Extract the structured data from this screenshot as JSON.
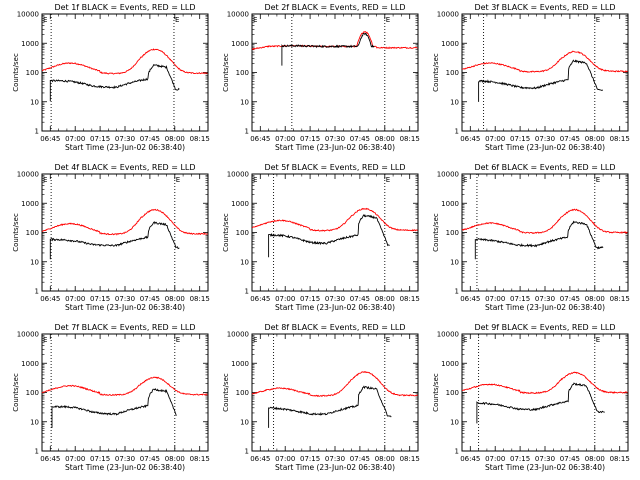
{
  "figure": {
    "axis": {
      "x_tick_labels": [
        "06:45",
        "07:00",
        "07:15",
        "07:30",
        "07:45",
        "08:00",
        "08:15"
      ],
      "x_tick_minutes": [
        0,
        15,
        30,
        45,
        60,
        75,
        90
      ],
      "x_range_minutes": [
        -5,
        95
      ],
      "x_label": "Start Time (23-Jun-02 06:38:40)",
      "y_label": "Counts/sec",
      "y_scale": "log",
      "y_tick_labels": [
        "1",
        "10",
        "100",
        "1000",
        "10000"
      ],
      "y_tick_values": [
        1,
        10,
        100,
        1000,
        10000
      ],
      "y_range": [
        1,
        10000
      ],
      "legend_marker": "E",
      "colors": {
        "events": "#000000",
        "lld": "#ff0000",
        "axes": "#000000"
      }
    },
    "panels": [
      {
        "title": "Det 1f BLACK = Events, RED = LLD",
        "vlines": [
          0.5,
          74.5
        ],
        "lld_mode": "standard",
        "lld_base": 95,
        "lld_bump": 210,
        "lld_peak": 620,
        "events_start": 0,
        "events_base": 48,
        "events_bump": 55,
        "events_peak": 180,
        "events_end": 78
      },
      {
        "title": "Det 2f BLACK = Events, RED = LLD",
        "vlines": [
          19,
          75
        ],
        "lld_mode": "flat",
        "lld_base": 780,
        "lld_bump": 820,
        "lld_peak": 2500,
        "events_start": 13,
        "events_base": 780,
        "events_bump": 820,
        "events_peak": 2100,
        "events_end": 69
      },
      {
        "title": "Det 3f BLACK = Events, RED = LLD",
        "vlines": [
          8,
          75
        ],
        "lld_mode": "standard",
        "lld_base": 110,
        "lld_bump": 210,
        "lld_peak": 520,
        "events_start": 5,
        "events_base": 45,
        "events_bump": 50,
        "events_peak": 250,
        "events_end": 80
      },
      {
        "title": "Det 4f BLACK = Events, RED = LLD",
        "vlines": [
          0.5,
          75
        ],
        "lld_mode": "standard",
        "lld_base": 90,
        "lld_bump": 200,
        "lld_peak": 600,
        "events_start": 0,
        "events_base": 55,
        "events_bump": 55,
        "events_peak": 220,
        "events_end": 78
      },
      {
        "title": "Det 5f BLACK = Events, RED = LLD",
        "vlines": [
          8,
          75
        ],
        "lld_mode": "standard",
        "lld_base": 120,
        "lld_bump": 260,
        "lld_peak": 650,
        "events_start": 5,
        "events_base": 65,
        "events_bump": 95,
        "events_peak": 380,
        "events_end": 78
      },
      {
        "title": "Det 6f BLACK = Events, RED = LLD",
        "vlines": [
          4,
          75
        ],
        "lld_mode": "standard",
        "lld_base": 100,
        "lld_bump": 210,
        "lld_peak": 600,
        "events_start": 3,
        "events_base": 55,
        "events_bump": 50,
        "events_peak": 230,
        "events_end": 80
      },
      {
        "title": "Det 7f BLACK = Events, RED = LLD",
        "vlines": [
          0.5,
          75
        ],
        "lld_mode": "standard",
        "lld_base": 85,
        "lld_bump": 170,
        "lld_peak": 330,
        "events_start": 1,
        "events_base": 28,
        "events_bump": 38,
        "events_peak": 130,
        "events_end": 76
      },
      {
        "title": "Det 8f BLACK = Events, RED = LLD",
        "vlines": [
          8,
          75
        ],
        "lld_mode": "standard",
        "lld_base": 80,
        "lld_bump": 140,
        "lld_peak": 500,
        "events_start": 5,
        "events_base": 28,
        "events_bump": 25,
        "events_peak": 155,
        "events_end": 79
      },
      {
        "title": "Det 9f BLACK = Events, RED = LLD",
        "vlines": [
          5,
          75
        ],
        "lld_mode": "standard",
        "lld_base": 100,
        "lld_bump": 190,
        "lld_peak": 480,
        "events_start": 4,
        "events_base": 40,
        "events_bump": 40,
        "events_peak": 200,
        "events_end": 81
      }
    ]
  },
  "chart_data": {
    "type": "line",
    "layout": "3x3 grid",
    "x_axis": {
      "label": "Start Time (23-Jun-02 06:38:40)",
      "ticks": [
        "06:45",
        "07:00",
        "07:15",
        "07:30",
        "07:45",
        "08:00",
        "08:15"
      ]
    },
    "y_axis": {
      "label": "Counts/sec",
      "scale": "log",
      "ylim": [
        1,
        10000
      ]
    },
    "series_names": [
      "Events (black)",
      "LLD (red)"
    ],
    "panels": [
      {
        "title": "Det 1f BLACK = Events, RED = LLD",
        "events": {
          "x": [
            "06:45",
            "07:00",
            "07:15",
            "07:30",
            "07:45",
            "07:51",
            "07:58"
          ],
          "y": [
            48,
            50,
            35,
            38,
            70,
            180,
            40
          ]
        },
        "lld": {
          "x": [
            "06:40",
            "07:00",
            "07:15",
            "07:30",
            "07:45",
            "07:51",
            "08:00",
            "08:15"
          ],
          "y": [
            95,
            210,
            140,
            150,
            300,
            620,
            250,
            90
          ]
        }
      },
      {
        "title": "Det 2f BLACK = Events, RED = LLD",
        "events": {
          "x": [
            "06:58",
            "07:15",
            "07:30",
            "07:45",
            "07:51",
            "07:54"
          ],
          "y": [
            780,
            820,
            760,
            1100,
            2100,
            1400
          ]
        },
        "lld": {
          "x": [
            "06:40",
            "07:00",
            "07:15",
            "07:30",
            "07:45",
            "07:51",
            "08:00",
            "08:15"
          ],
          "y": [
            780,
            820,
            790,
            770,
            1100,
            2500,
            900,
            700
          ]
        }
      },
      {
        "title": "Det 3f BLACK = Events, RED = LLD",
        "events": {
          "x": [
            "06:50",
            "07:00",
            "07:15",
            "07:30",
            "07:45",
            "07:51",
            "08:00"
          ],
          "y": [
            45,
            50,
            35,
            38,
            90,
            250,
            45
          ]
        },
        "lld": {
          "x": [
            "06:40",
            "07:00",
            "07:15",
            "07:30",
            "07:45",
            "07:51",
            "08:00",
            "08:15"
          ],
          "y": [
            110,
            210,
            150,
            160,
            300,
            520,
            250,
            110
          ]
        }
      },
      {
        "title": "Det 4f BLACK = Events, RED = LLD",
        "events": {
          "x": [
            "06:45",
            "07:00",
            "07:15",
            "07:30",
            "07:45",
            "07:51",
            "07:58"
          ],
          "y": [
            55,
            55,
            40,
            42,
            90,
            220,
            40
          ]
        },
        "lld": {
          "x": [
            "06:40",
            "07:00",
            "07:15",
            "07:30",
            "07:45",
            "07:51",
            "08:00",
            "08:15"
          ],
          "y": [
            90,
            200,
            140,
            150,
            300,
            600,
            250,
            90
          ]
        }
      },
      {
        "title": "Det 5f BLACK = Events, RED = LLD",
        "events": {
          "x": [
            "06:50",
            "07:00",
            "07:15",
            "07:30",
            "07:45",
            "07:51",
            "07:58"
          ],
          "y": [
            65,
            95,
            70,
            75,
            150,
            380,
            70
          ]
        },
        "lld": {
          "x": [
            "06:40",
            "07:00",
            "07:15",
            "07:30",
            "07:45",
            "07:51",
            "08:00",
            "08:15"
          ],
          "y": [
            120,
            260,
            180,
            190,
            350,
            650,
            300,
            120
          ]
        }
      },
      {
        "title": "Det 6f BLACK = Events, RED = LLD",
        "events": {
          "x": [
            "06:48",
            "07:00",
            "07:15",
            "07:30",
            "07:45",
            "07:51",
            "08:00"
          ],
          "y": [
            55,
            50,
            38,
            40,
            90,
            230,
            45
          ]
        },
        "lld": {
          "x": [
            "06:40",
            "07:00",
            "07:15",
            "07:30",
            "07:45",
            "07:51",
            "08:00",
            "08:15"
          ],
          "y": [
            100,
            210,
            150,
            160,
            320,
            600,
            260,
            100
          ]
        }
      },
      {
        "title": "Det 7f BLACK = Events, RED = LLD",
        "events": {
          "x": [
            "06:46",
            "07:00",
            "07:15",
            "07:30",
            "07:45",
            "07:51",
            "07:56"
          ],
          "y": [
            28,
            38,
            28,
            30,
            55,
            130,
            35
          ]
        },
        "lld": {
          "x": [
            "06:40",
            "07:00",
            "07:15",
            "07:30",
            "07:45",
            "07:51",
            "08:00",
            "08:15"
          ],
          "y": [
            85,
            170,
            120,
            130,
            220,
            330,
            180,
            85
          ]
        }
      },
      {
        "title": "Det 8f BLACK = Events, RED = LLD",
        "events": {
          "x": [
            "06:50",
            "07:00",
            "07:15",
            "07:30",
            "07:45",
            "07:51",
            "07:59"
          ],
          "y": [
            28,
            25,
            20,
            22,
            55,
            155,
            28
          ]
        },
        "lld": {
          "x": [
            "06:40",
            "07:00",
            "07:15",
            "07:30",
            "07:45",
            "07:51",
            "08:00",
            "08:15"
          ],
          "y": [
            80,
            140,
            110,
            120,
            230,
            500,
            200,
            80
          ]
        }
      },
      {
        "title": "Det 9f BLACK = Events, RED = LLD",
        "events": {
          "x": [
            "06:49",
            "07:00",
            "07:15",
            "07:30",
            "07:45",
            "07:51",
            "08:01"
          ],
          "y": [
            40,
            40,
            30,
            32,
            75,
            200,
            38
          ]
        },
        "lld": {
          "x": [
            "06:40",
            "07:00",
            "07:15",
            "07:30",
            "07:45",
            "07:51",
            "08:00",
            "08:15"
          ],
          "y": [
            100,
            190,
            140,
            150,
            280,
            480,
            230,
            100
          ]
        }
      }
    ]
  }
}
